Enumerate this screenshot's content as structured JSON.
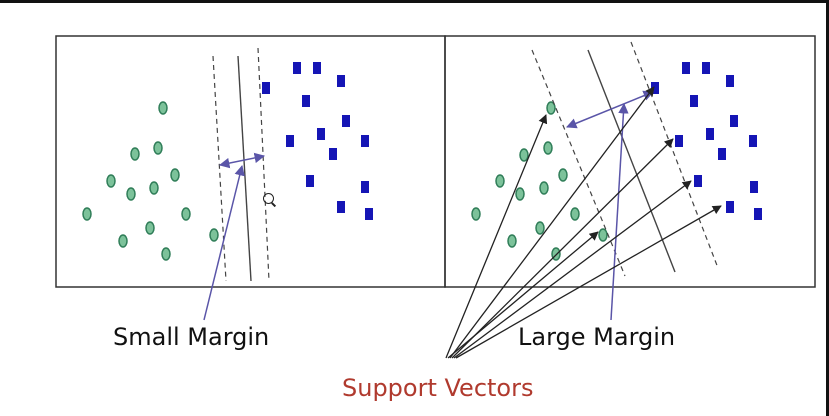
{
  "labels": {
    "small_margin": "Small Margin",
    "large_margin": "Large Margin",
    "support_vectors": "Support Vectors"
  },
  "colors": {
    "circle_fill": "#7cc29a",
    "circle_stroke": "#2f7d58",
    "square_fill": "#1515b5",
    "arrow": "#5a55a8",
    "line": "#444444",
    "support_vectors_text": "#b03a2e"
  }
}
